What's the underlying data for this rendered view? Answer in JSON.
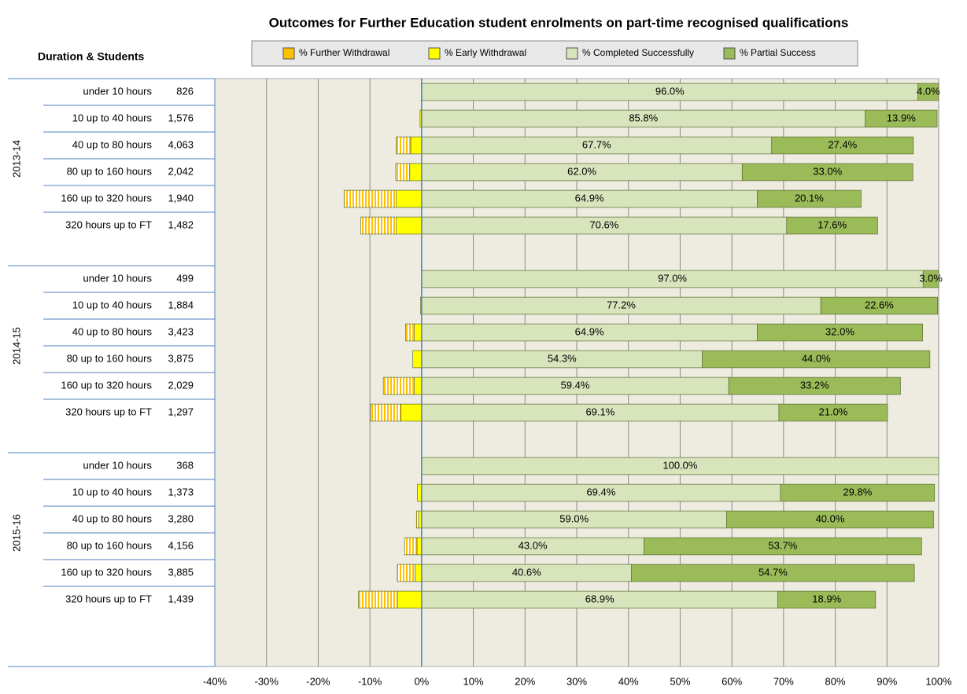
{
  "chart_data": {
    "type": "diverging-stacked-bar",
    "title": "Outcomes for Further Education student enrolments on part-time recognised qualifications",
    "ylabel": "Duration & Students",
    "categories": [
      "under 10 hours",
      "10 up to 40 hours",
      "40 up to 80 hours",
      "80 up to 160 hours",
      "160 up to 320 hours",
      "320 hours up to FT",
      "under 10 hours",
      "10 up to 40 hours",
      "40 up to 80 hours",
      "80 up to 160 hours",
      "160 up to 320 hours",
      "320 hours up to FT",
      "under 10 hours",
      "10 up to 40 hours",
      "40 up to 80 hours",
      "80 up to 160 hours",
      "160 up to 320 hours",
      "320 hours up to FT"
    ],
    "students": [
      "826",
      "1,576",
      "4,063",
      "2,042",
      "1,940",
      "1,482",
      "499",
      "1,884",
      "3,423",
      "3,875",
      "2,029",
      "1,297",
      "368",
      "1,373",
      "3,280",
      "4,156",
      "3,885",
      "1,439"
    ],
    "groups": [
      "2013-14",
      "2013-14",
      "2013-14",
      "2013-14",
      "2013-14",
      "2013-14",
      "2014-15",
      "2014-15",
      "2014-15",
      "2014-15",
      "2014-15",
      "2014-15",
      "2015-16",
      "2015-16",
      "2015-16",
      "2015-16",
      "2015-16",
      "2015-16"
    ],
    "series": [
      {
        "name": "% Further Withdrawal",
        "color": "#ffc000",
        "hatch": true,
        "values": [
          0,
          0,
          -2.8,
          -2.7,
          -10.1,
          -6.9,
          0,
          0,
          -1.7,
          0,
          -6.0,
          -5.9,
          0,
          0,
          -0.4,
          -2.4,
          -3.4,
          -7.5
        ]
      },
      {
        "name": "% Early Withdrawal",
        "color": "#ffff00",
        "values": [
          0,
          -0.3,
          -2.1,
          -2.3,
          -4.9,
          -4.9,
          0,
          -0.2,
          -1.4,
          -1.7,
          -1.4,
          -4.0,
          0,
          -0.8,
          -0.6,
          -0.9,
          -1.3,
          -4.7
        ]
      },
      {
        "name": "% Completed Successfully",
        "color": "#d8e4bc",
        "values": [
          96.0,
          85.8,
          67.7,
          62.0,
          64.9,
          70.6,
          97.0,
          77.2,
          64.9,
          54.3,
          59.4,
          69.1,
          100.0,
          69.4,
          59.0,
          43.0,
          40.6,
          68.9
        ],
        "value_labels": [
          "96.0%",
          "85.8%",
          "67.7%",
          "62.0%",
          "64.9%",
          "70.6%",
          "97.0%",
          "77.2%",
          "64.9%",
          "54.3%",
          "59.4%",
          "69.1%",
          "100.0%",
          "69.4%",
          "59.0%",
          "43.0%",
          "40.6%",
          "68.9%"
        ]
      },
      {
        "name": "% Partial Success",
        "color": "#9bbb59",
        "values": [
          4.0,
          13.9,
          27.4,
          33.0,
          20.1,
          17.6,
          3.0,
          22.6,
          32.0,
          44.0,
          33.2,
          21.0,
          0,
          29.8,
          40.0,
          53.7,
          54.7,
          18.9
        ],
        "value_labels": [
          "4.0%",
          "13.9%",
          "27.4%",
          "33.0%",
          "20.1%",
          "17.6%",
          "3.0%",
          "22.6%",
          "32.0%",
          "44.0%",
          "33.2%",
          "21.0%",
          null,
          "29.8%",
          "40.0%",
          "53.7%",
          "54.7%",
          "18.9%"
        ]
      }
    ],
    "xlim": [
      -40,
      100
    ],
    "xticks": [
      {
        "value": -40,
        "label": "-40%"
      },
      {
        "value": -30,
        "label": "-30%"
      },
      {
        "value": -20,
        "label": "-20%"
      },
      {
        "value": -10,
        "label": "-10%"
      },
      {
        "value": 0,
        "label": "0%"
      },
      {
        "value": 10,
        "label": "10%"
      },
      {
        "value": 20,
        "label": "20%"
      },
      {
        "value": 30,
        "label": "30%"
      },
      {
        "value": 40,
        "label": "40%"
      },
      {
        "value": 50,
        "label": "50%"
      },
      {
        "value": 60,
        "label": "60%"
      },
      {
        "value": 70,
        "label": "70%"
      },
      {
        "value": 80,
        "label": "80%"
      },
      {
        "value": 90,
        "label": "90%"
      },
      {
        "value": 100,
        "label": "100%"
      }
    ],
    "grid": true,
    "legend": "top"
  }
}
